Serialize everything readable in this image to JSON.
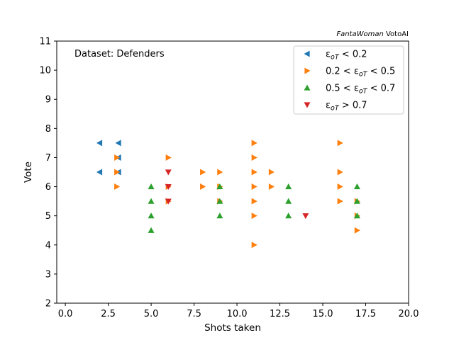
{
  "chart_data": {
    "type": "scatter",
    "watermark": {
      "italic": "FantaWoman",
      "plain": " VotoAI"
    },
    "annotation": "Dataset: Defenders",
    "xlabel": "Shots taken",
    "ylabel": "Vote",
    "xlim": [
      -0.5,
      20
    ],
    "ylim": [
      2,
      11
    ],
    "xticks": [
      "0.0",
      "2.5",
      "5.0",
      "7.5",
      "10.0",
      "12.5",
      "15.0",
      "17.5",
      "20.0"
    ],
    "yticks": [
      "2",
      "3",
      "4",
      "5",
      "6",
      "7",
      "8",
      "9",
      "10",
      "11"
    ],
    "grid": false,
    "legend_position": "top-right",
    "series": [
      {
        "key": "s1",
        "color": "#1f77b4",
        "marker": "triangle-left",
        "label_pre": "ε",
        "label_sub": "oT",
        "label_post": " < 0.2",
        "points": [
          [
            2,
            7.5
          ],
          [
            2,
            6.5
          ],
          [
            3.1,
            7.5
          ],
          [
            3.1,
            7
          ],
          [
            3.1,
            6.5
          ]
        ]
      },
      {
        "key": "s2",
        "color": "#ff7f0e",
        "marker": "triangle-right",
        "label_pre": "0.2 < ε",
        "label_sub": "oT",
        "label_post": " < 0.5",
        "points": [
          [
            3,
            7
          ],
          [
            3,
            6.5
          ],
          [
            3,
            6
          ],
          [
            6,
            7
          ],
          [
            6,
            6
          ],
          [
            6,
            5.5
          ],
          [
            8,
            6.5
          ],
          [
            8,
            6
          ],
          [
            9,
            6.5
          ],
          [
            9,
            6
          ],
          [
            9,
            5.5
          ],
          [
            11,
            7.5
          ],
          [
            11,
            7
          ],
          [
            11,
            6.5
          ],
          [
            11,
            6
          ],
          [
            11,
            5.5
          ],
          [
            11,
            5
          ],
          [
            11,
            4
          ],
          [
            12,
            6.5
          ],
          [
            12,
            6
          ],
          [
            16,
            7.5
          ],
          [
            16,
            6.5
          ],
          [
            16,
            6
          ],
          [
            16,
            5.5
          ],
          [
            17,
            5.5
          ],
          [
            17,
            5
          ],
          [
            17,
            4.5
          ]
        ]
      },
      {
        "key": "s3",
        "color": "#2ca02c",
        "marker": "triangle-up",
        "label_pre": "0.5 < ε",
        "label_sub": "oT",
        "label_post": " < 0.7",
        "points": [
          [
            5,
            6
          ],
          [
            5,
            5.5
          ],
          [
            5,
            5
          ],
          [
            5,
            4.5
          ],
          [
            9,
            6
          ],
          [
            9,
            5.5
          ],
          [
            9,
            5
          ],
          [
            13,
            6
          ],
          [
            13,
            5.5
          ],
          [
            13,
            5
          ],
          [
            17,
            6
          ],
          [
            17,
            5.5
          ],
          [
            17,
            5
          ]
        ]
      },
      {
        "key": "s4",
        "color": "#d62728",
        "marker": "triangle-down",
        "label_pre": "ε",
        "label_sub": "oT",
        "label_post": " > 0.7",
        "points": [
          [
            6,
            6.5
          ],
          [
            6,
            6
          ],
          [
            6,
            5.5
          ],
          [
            14,
            5
          ]
        ]
      }
    ]
  }
}
